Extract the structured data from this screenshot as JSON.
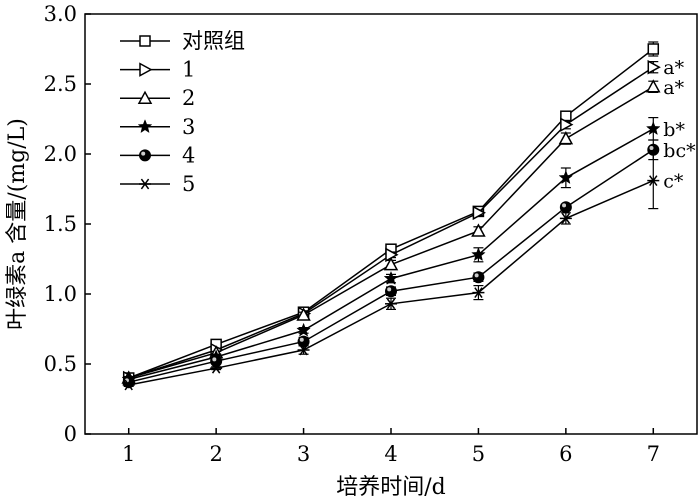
{
  "chart_data": {
    "type": "line",
    "title": "",
    "xlabel": "培养时间/d",
    "ylabel": "叶绿素a 含量/(mg/L)",
    "xlim": [
      0.5,
      7.5
    ],
    "ylim": [
      0,
      3.0
    ],
    "x": [
      1,
      2,
      3,
      4,
      5,
      6,
      7
    ],
    "x_ticks": [
      "1",
      "2",
      "3",
      "4",
      "5",
      "6",
      "7"
    ],
    "y_ticks": [
      "0",
      "0.5",
      "1.0",
      "1.5",
      "2.0",
      "2.5",
      "3.0"
    ],
    "grid": false,
    "legend_position": "top-left",
    "series": [
      {
        "name": "对照组",
        "marker": "square-open",
        "values": [
          0.4,
          0.64,
          0.87,
          1.32,
          1.59,
          2.27,
          2.75
        ],
        "errors": [
          0.01,
          0.01,
          0.02,
          0.02,
          0.02,
          0.03,
          0.05
        ],
        "significance": ""
      },
      {
        "name": "1",
        "marker": "triangle-right-open",
        "values": [
          0.4,
          0.6,
          0.86,
          1.28,
          1.58,
          2.21,
          2.62
        ],
        "errors": [
          0.01,
          0.01,
          0.02,
          0.02,
          0.02,
          0.03,
          0.04
        ],
        "significance": "a*"
      },
      {
        "name": "2",
        "marker": "triangle-up-open",
        "values": [
          0.4,
          0.58,
          0.85,
          1.21,
          1.45,
          2.11,
          2.48
        ],
        "errors": [
          0.01,
          0.01,
          0.02,
          0.03,
          0.03,
          0.04,
          0.04
        ],
        "significance": "a*"
      },
      {
        "name": "3",
        "marker": "star",
        "values": [
          0.39,
          0.55,
          0.74,
          1.11,
          1.28,
          1.83,
          2.18
        ],
        "errors": [
          0.01,
          0.02,
          0.02,
          0.03,
          0.05,
          0.07,
          0.08
        ],
        "significance": "b*"
      },
      {
        "name": "4",
        "marker": "circle-half",
        "values": [
          0.37,
          0.52,
          0.66,
          1.02,
          1.12,
          1.62,
          2.03
        ],
        "errors": [
          0.01,
          0.01,
          0.03,
          0.03,
          0.03,
          0.02,
          0.07
        ],
        "significance": "bc*"
      },
      {
        "name": "5",
        "marker": "asterisk",
        "values": [
          0.35,
          0.47,
          0.6,
          0.93,
          1.01,
          1.54,
          1.81
        ],
        "errors": [
          0.01,
          0.01,
          0.03,
          0.04,
          0.05,
          0.04,
          0.2
        ],
        "significance": "c*"
      }
    ]
  }
}
